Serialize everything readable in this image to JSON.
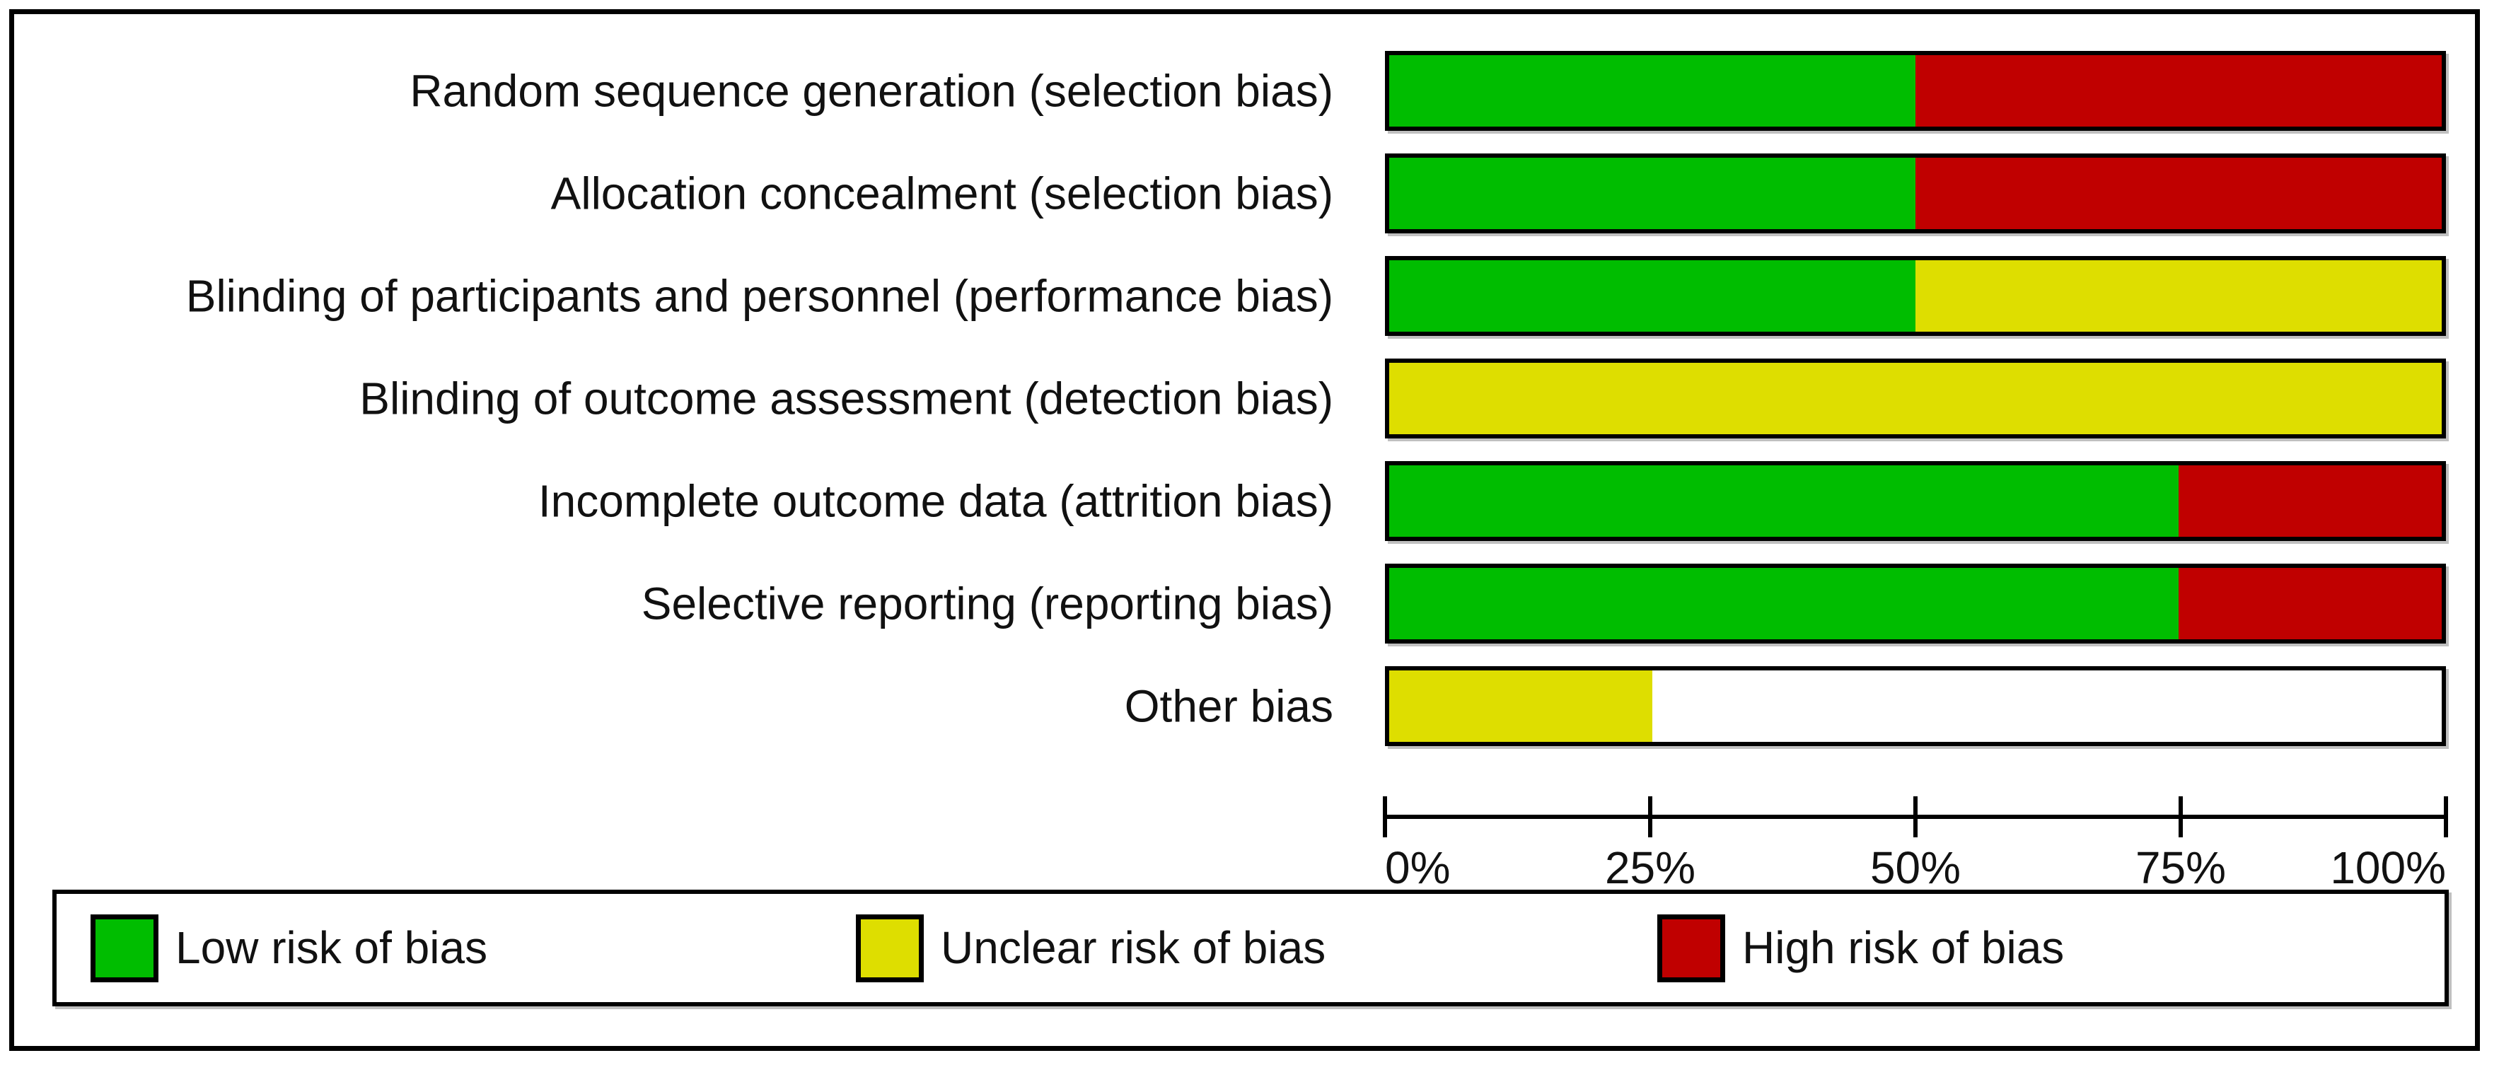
{
  "figure": {
    "kind": "risk-of-bias-graph",
    "background": "#ffffff",
    "frame_border_color": "#000000"
  },
  "chart_data": {
    "type": "bar",
    "orientation": "horizontal",
    "stacked": true,
    "value_unit": "percent",
    "categories": [
      "Random sequence generation (selection bias)",
      "Allocation concealment (selection bias)",
      "Blinding of participants and personnel (performance bias)",
      "Blinding of outcome assessment (detection bias)",
      "Incomplete outcome data (attrition bias)",
      "Selective reporting (reporting bias)",
      "Other bias"
    ],
    "series": [
      {
        "name": "Low risk of bias",
        "color": "#00bd00",
        "values": [
          50,
          50,
          50,
          0,
          75,
          75,
          0
        ]
      },
      {
        "name": "Unclear risk of bias",
        "color": "#dede00",
        "values": [
          0,
          0,
          50,
          100,
          0,
          0,
          25
        ]
      },
      {
        "name": "High risk of bias",
        "color": "#c00000",
        "values": [
          50,
          50,
          0,
          0,
          25,
          25,
          0
        ]
      }
    ],
    "xlim": [
      0,
      100
    ],
    "x_ticks": [
      "0%",
      "25%",
      "50%",
      "75%",
      "100%"
    ],
    "grid": false,
    "legend_position": "bottom",
    "bar_border_color": "#000000",
    "empty_fill": "#ffffff"
  },
  "legend": {
    "items": [
      {
        "label": "Low risk of bias",
        "color": "#00bd00"
      },
      {
        "label": "Unclear risk of bias",
        "color": "#dede00"
      },
      {
        "label": "High risk of bias",
        "color": "#c00000"
      }
    ]
  },
  "colors": {
    "text": "#111111",
    "shadow": "#8c8c8c"
  }
}
